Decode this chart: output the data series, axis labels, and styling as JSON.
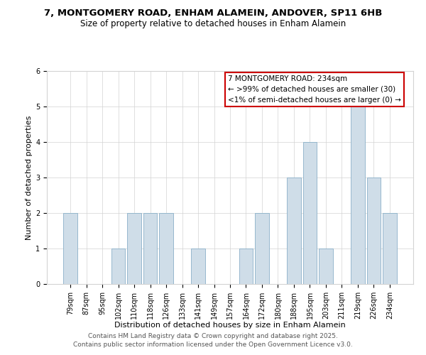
{
  "title": "7, MONTGOMERY ROAD, ENHAM ALAMEIN, ANDOVER, SP11 6HB",
  "subtitle": "Size of property relative to detached houses in Enham Alamein",
  "xlabel": "Distribution of detached houses by size in Enham Alamein",
  "ylabel": "Number of detached properties",
  "categories": [
    "79sqm",
    "87sqm",
    "95sqm",
    "102sqm",
    "110sqm",
    "118sqm",
    "126sqm",
    "133sqm",
    "141sqm",
    "149sqm",
    "157sqm",
    "164sqm",
    "172sqm",
    "180sqm",
    "188sqm",
    "195sqm",
    "203sqm",
    "211sqm",
    "219sqm",
    "226sqm",
    "234sqm"
  ],
  "values": [
    2,
    0,
    0,
    1,
    2,
    2,
    2,
    0,
    1,
    0,
    0,
    1,
    2,
    0,
    3,
    4,
    1,
    0,
    5,
    3,
    2
  ],
  "bar_color": "#cfdde8",
  "bar_edge_color": "#8ab0c8",
  "annotation_box_edge_color": "#cc0000",
  "annotation_title": "7 MONTGOMERY ROAD: 234sqm",
  "annotation_line1": "← >99% of detached houses are smaller (30)",
  "annotation_line2": "<1% of semi-detached houses are larger (0) →",
  "ylim": [
    0,
    6
  ],
  "yticks": [
    0,
    1,
    2,
    3,
    4,
    5,
    6
  ],
  "footer1": "Contains HM Land Registry data © Crown copyright and database right 2025.",
  "footer2": "Contains public sector information licensed under the Open Government Licence v3.0.",
  "title_fontsize": 9.5,
  "subtitle_fontsize": 8.5,
  "axis_label_fontsize": 8,
  "tick_fontsize": 7,
  "annotation_fontsize": 7.5,
  "footer_fontsize": 6.5
}
